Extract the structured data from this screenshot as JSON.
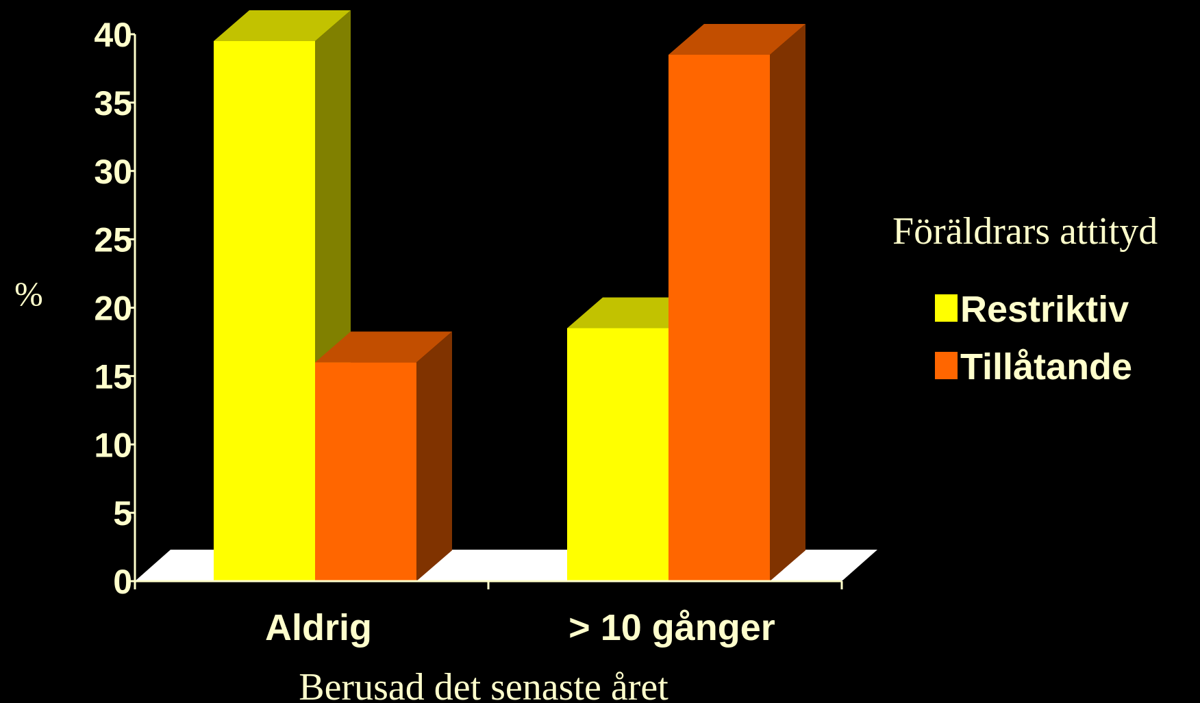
{
  "chart_data": {
    "type": "bar",
    "style": "3d-clustered-column",
    "categories": [
      "Aldrig",
      "> 10 gånger"
    ],
    "series": [
      {
        "name": "Restriktiv",
        "values": [
          39.5,
          18.5
        ],
        "color": "#ffff00"
      },
      {
        "name": "Tillåtande",
        "values": [
          16,
          38.5
        ],
        "color": "#ff6600"
      }
    ],
    "xlabel": "Berusad det senaste året",
    "ylabel": "%",
    "ylim": [
      0,
      40
    ],
    "yticks": [
      "0",
      "5",
      "10",
      "15",
      "20",
      "25",
      "30",
      "35",
      "40"
    ],
    "legend": {
      "title": "Föräldrars attityd",
      "placement": "right"
    },
    "grid": false,
    "background": "#000000",
    "text_color": "#ffffcc",
    "floor_color": "#ffffff"
  }
}
